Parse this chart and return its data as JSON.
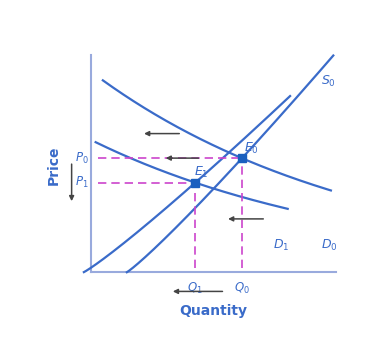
{
  "xlabel": "Quantity",
  "ylabel": "Price",
  "curve_color": "#3a6bc9",
  "dashed_color": "#cc44cc",
  "arrow_color": "#444444",
  "dot_color": "#1a5fbf",
  "label_color": "#3a6bc9",
  "bg_color": "#ffffff",
  "axis_color": "#99aadd",
  "E0": [
    0.63,
    0.535
  ],
  "E1": [
    0.435,
    0.42
  ],
  "P0": 0.535,
  "P1": 0.42,
  "Q0": 0.63,
  "Q1": 0.435
}
